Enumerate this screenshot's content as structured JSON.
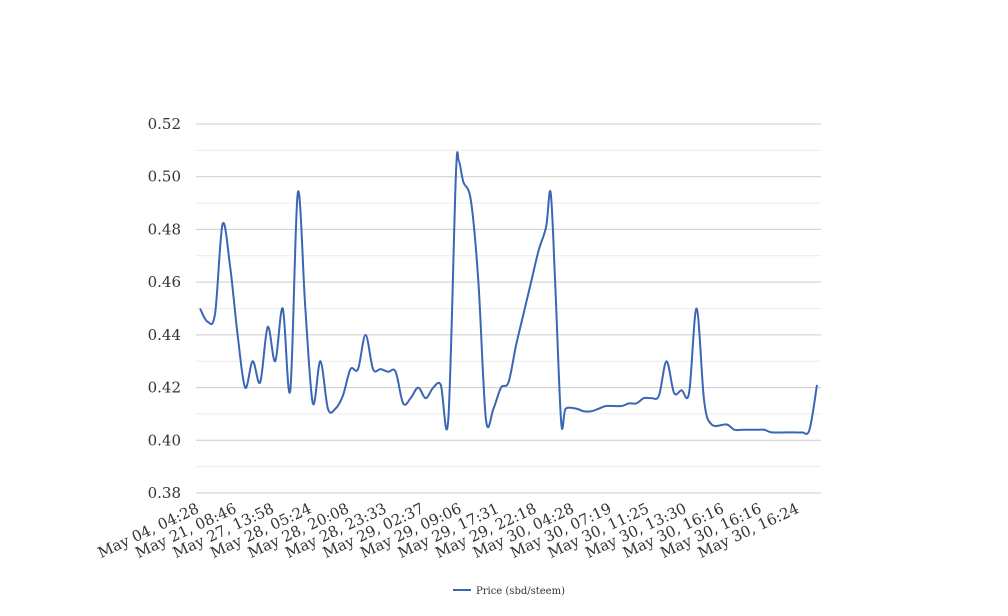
{
  "chart_data": {
    "type": "line",
    "title": "",
    "xlabel": "",
    "ylabel": "",
    "ylim": [
      0.38,
      0.52
    ],
    "y_ticks": [
      0.38,
      0.4,
      0.42,
      0.44,
      0.46,
      0.48,
      0.5,
      0.52
    ],
    "y_tick_labels": [
      "0.38",
      "0.40",
      "0.42",
      "0.44",
      "0.46",
      "0.48",
      "0.50",
      "0.52"
    ],
    "x_tick_labels": [
      "May 04, 04:28",
      "May 21, 08:46",
      "May 27, 13:58",
      "May 28, 05:24",
      "May 28, 20:08",
      "May 28, 23:33",
      "May 29, 02:37",
      "May 29, 09:06",
      "May 29, 17:31",
      "May 29, 22:18",
      "May 30, 04:28",
      "May 30, 07:19",
      "May 30, 11:25",
      "May 30, 13:30",
      "May 30, 16:16",
      "May 30, 16:16",
      "May 30, 16:24"
    ],
    "grid": true,
    "legend": "bottom-center",
    "series": [
      {
        "name": "Price (sbd/steem)",
        "color": "#3a66b5",
        "points": [
          [
            0.0,
            0.45
          ],
          [
            0.5,
            0.445
          ],
          [
            1.0,
            0.448
          ],
          [
            1.5,
            0.482
          ],
          [
            2.0,
            0.466
          ],
          [
            2.5,
            0.44
          ],
          [
            3.0,
            0.42
          ],
          [
            3.5,
            0.43
          ],
          [
            4.0,
            0.422
          ],
          [
            4.5,
            0.443
          ],
          [
            5.0,
            0.43
          ],
          [
            5.5,
            0.45
          ],
          [
            6.0,
            0.419
          ],
          [
            6.5,
            0.494
          ],
          [
            7.0,
            0.45
          ],
          [
            7.5,
            0.414
          ],
          [
            8.0,
            0.43
          ],
          [
            8.5,
            0.412
          ],
          [
            9.0,
            0.412
          ],
          [
            9.5,
            0.417
          ],
          [
            10.0,
            0.427
          ],
          [
            10.5,
            0.427
          ],
          [
            11.0,
            0.44
          ],
          [
            11.5,
            0.427
          ],
          [
            12.0,
            0.427
          ],
          [
            12.5,
            0.426
          ],
          [
            13.0,
            0.426
          ],
          [
            13.5,
            0.414
          ],
          [
            14.0,
            0.416
          ],
          [
            14.5,
            0.42
          ],
          [
            15.0,
            0.416
          ],
          [
            15.5,
            0.42
          ],
          [
            16.0,
            0.421
          ],
          [
            16.5,
            0.408
          ],
          [
            17.0,
            0.5
          ],
          [
            17.2,
            0.506
          ],
          [
            17.5,
            0.498
          ],
          [
            18.0,
            0.491
          ],
          [
            18.5,
            0.46
          ],
          [
            19.0,
            0.408
          ],
          [
            19.5,
            0.412
          ],
          [
            20.0,
            0.42
          ],
          [
            20.5,
            0.422
          ],
          [
            21.0,
            0.436
          ],
          [
            21.5,
            0.448
          ],
          [
            22.0,
            0.46
          ],
          [
            22.5,
            0.472
          ],
          [
            23.0,
            0.481
          ],
          [
            23.3,
            0.494
          ],
          [
            23.6,
            0.46
          ],
          [
            24.0,
            0.407
          ],
          [
            24.3,
            0.412
          ],
          [
            25.0,
            0.412
          ],
          [
            25.5,
            0.411
          ],
          [
            26.0,
            0.411
          ],
          [
            26.5,
            0.412
          ],
          [
            27.0,
            0.413
          ],
          [
            28.0,
            0.413
          ],
          [
            28.5,
            0.414
          ],
          [
            29.0,
            0.414
          ],
          [
            29.5,
            0.416
          ],
          [
            30.0,
            0.416
          ],
          [
            30.5,
            0.417
          ],
          [
            31.0,
            0.43
          ],
          [
            31.5,
            0.418
          ],
          [
            32.0,
            0.419
          ],
          [
            32.5,
            0.418
          ],
          [
            33.0,
            0.45
          ],
          [
            33.5,
            0.415
          ],
          [
            34.0,
            0.406
          ],
          [
            35.0,
            0.406
          ],
          [
            35.5,
            0.404
          ],
          [
            36.0,
            0.404
          ],
          [
            37.0,
            0.404
          ],
          [
            37.5,
            0.404
          ],
          [
            38.0,
            0.403
          ],
          [
            39.0,
            0.403
          ],
          [
            39.5,
            0.403
          ],
          [
            40.0,
            0.403
          ],
          [
            40.5,
            0.404
          ],
          [
            41.0,
            0.421
          ]
        ]
      }
    ]
  }
}
